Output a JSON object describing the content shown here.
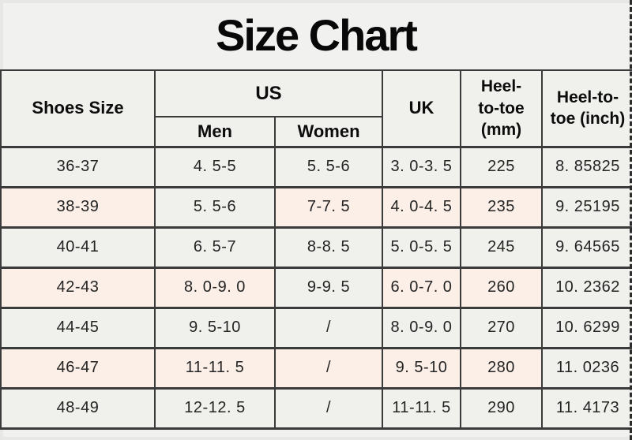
{
  "title": "Size Chart",
  "colors": {
    "background": "#f1f1ef",
    "row_gray": "#f0f0ed",
    "row_pink": "#fcefe7",
    "border_dark": "#3b3b3b",
    "text": "#1d1d1d"
  },
  "header": {
    "shoes_size": "Shoes Size",
    "us": "US",
    "men": "Men",
    "women": "Women",
    "uk": "UK",
    "heel_mm": "Heel-\nto-toe\n(mm)",
    "heel_inch": "Heel-to-\ntoe (inch)"
  },
  "chart_data": {
    "type": "table",
    "title": "Size Chart",
    "columns": [
      "Shoes Size",
      "US Men",
      "US Women",
      "UK",
      "Heel-to-toe (mm)",
      "Heel-to-toe (inch)"
    ],
    "rows": [
      [
        "36-37",
        "4. 5-5",
        "5. 5-6",
        "3. 0-3. 5",
        "225",
        "8. 85825"
      ],
      [
        "38-39",
        "5. 5-6",
        "7-7. 5",
        "4. 0-4. 5",
        "235",
        "9. 25195"
      ],
      [
        "40-41",
        "6. 5-7",
        "8-8. 5",
        "5. 0-5. 5",
        "245",
        "9. 64565"
      ],
      [
        "42-43",
        "8. 0-9. 0",
        "9-9. 5",
        "6. 0-7. 0",
        "260",
        "10. 2362"
      ],
      [
        "44-45",
        "9. 5-10",
        "/",
        "8. 0-9. 0",
        "270",
        "10. 6299"
      ],
      [
        "46-47",
        "11-11. 5",
        "/",
        "9. 5-10",
        "280",
        "11. 0236"
      ],
      [
        "48-49",
        "12-12. 5",
        "/",
        "11-11. 5",
        "290",
        "11. 4173"
      ]
    ],
    "highlighted_rows_pink": [
      1,
      3,
      5
    ],
    "gray_cells_inside_pink_rows": {
      "1": [
        1,
        5
      ],
      "3": [
        2,
        5
      ],
      "5": [
        5
      ]
    }
  }
}
